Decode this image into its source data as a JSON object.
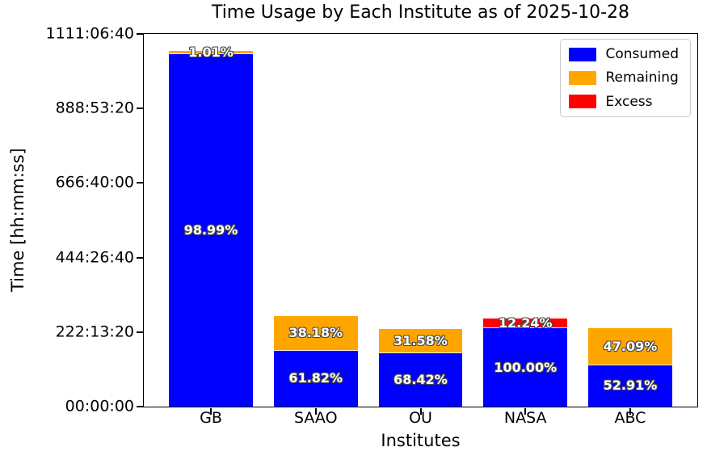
{
  "chart_data": {
    "type": "bar",
    "stacked": true,
    "title": "Time Usage by Each Institute as of 2025-10-28",
    "xlabel": "Institutes",
    "ylabel": "Time [hh:mm:ss]",
    "categories": [
      "GB",
      "SAAO",
      "OU",
      "NASA",
      "ABC"
    ],
    "y_axis": {
      "min_seconds": 0,
      "max_seconds": 4000000,
      "tick_interval_seconds": 800000,
      "tick_labels": [
        "00:00:00",
        "222:13:20",
        "444:26:40",
        "666:40:00",
        "888:53:20",
        "1111:06:40"
      ],
      "grid": false
    },
    "colors": {
      "consumed": "#0000ff",
      "remaining": "#ffa500",
      "excess": "#ff0000"
    },
    "legend": {
      "position": "upper-right",
      "entries": [
        {
          "label": "Consumed",
          "color": "#0000ff"
        },
        {
          "label": "Remaining",
          "color": "#ffa500"
        },
        {
          "label": "Excess",
          "color": "#ff0000"
        }
      ]
    },
    "bars": [
      {
        "institute": "GB",
        "segments": [
          {
            "series": "consumed",
            "seconds": 3780000,
            "percent_label": "98.99%"
          },
          {
            "series": "remaining",
            "seconds": 38600,
            "percent_label": "1.01%"
          }
        ]
      },
      {
        "institute": "SAAO",
        "segments": [
          {
            "series": "consumed",
            "seconds": 600000,
            "percent_label": "61.82%"
          },
          {
            "series": "remaining",
            "seconds": 370500,
            "percent_label": "38.18%"
          }
        ]
      },
      {
        "institute": "OU",
        "segments": [
          {
            "series": "consumed",
            "seconds": 569000,
            "percent_label": "68.42%"
          },
          {
            "series": "remaining",
            "seconds": 262600,
            "percent_label": "31.58%"
          }
        ]
      },
      {
        "institute": "NASA",
        "segments": [
          {
            "series": "consumed",
            "seconds": 840000,
            "percent_label": "100.00%"
          },
          {
            "series": "excess",
            "seconds": 102800,
            "percent_label": "12.24%"
          }
        ]
      },
      {
        "institute": "ABC",
        "segments": [
          {
            "series": "consumed",
            "seconds": 444400,
            "percent_label": "52.91%"
          },
          {
            "series": "remaining",
            "seconds": 395600,
            "percent_label": "47.09%"
          }
        ]
      }
    ]
  }
}
